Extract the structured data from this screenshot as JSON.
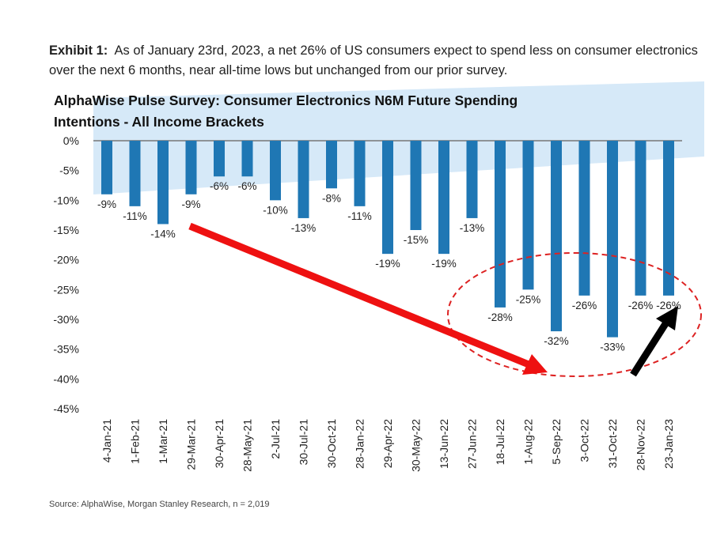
{
  "exhibit": {
    "label": "Exhibit 1:",
    "text": "As of January 23rd, 2023, a net 26% of US consumers expect to spend less on consumer electronics over the next 6 months, near all-time lows but unchanged from our prior survey."
  },
  "source": "Source: AlphaWise, Morgan Stanley Research, n = 2,019",
  "colors": {
    "bar": "#1f77b4",
    "band": "#d6e9f8",
    "arrow_red": "#ee1111",
    "arrow_black": "#000000",
    "ellipse": "#dd2222"
  },
  "chart_data": {
    "type": "bar",
    "title_lines": [
      "AlphaWise Pulse Survey: Consumer Electronics N6M Future Spending",
      "Intentions - All Income Brackets"
    ],
    "categories": [
      "4-Jan-21",
      "1-Feb-21",
      "1-Mar-21",
      "29-Mar-21",
      "30-Apr-21",
      "28-May-21",
      "2-Jul-21",
      "30-Jul-21",
      "30-Oct-21",
      "28-Jan-22",
      "29-Apr-22",
      "30-May-22",
      "13-Jun-22",
      "27-Jun-22",
      "18-Jul-22",
      "1-Aug-22",
      "5-Sep-22",
      "3-Oct-22",
      "31-Oct-22",
      "28-Nov-22",
      "23-Jan-23"
    ],
    "values": [
      -9,
      -11,
      -14,
      -9,
      -6,
      -6,
      -10,
      -13,
      -8,
      -11,
      -19,
      -15,
      -19,
      -13,
      -28,
      -25,
      -32,
      -26,
      -33,
      -26,
      -26
    ],
    "data_labels": [
      "-9%",
      "-11%",
      "-14%",
      "-9%",
      "-6%",
      "-6%",
      "-10%",
      "-13%",
      "-8%",
      "-11%",
      "-19%",
      "-15%",
      "-19%",
      "-13%",
      "-28%",
      "-25%",
      "-32%",
      "-26%",
      "-33%",
      "-26%",
      "-26%"
    ],
    "yticks": [
      0,
      -5,
      -10,
      -15,
      -20,
      -25,
      -30,
      -35,
      -40,
      -45
    ],
    "ytick_labels": [
      "0%",
      "-5%",
      "-10%",
      "-15%",
      "-20%",
      "-25%",
      "-30%",
      "-35%",
      "-40%",
      "-45%"
    ],
    "ylim": [
      -45,
      0
    ],
    "xlabel": "",
    "ylabel": "",
    "grid": false,
    "annotations": [
      "red downward trend arrow",
      "dashed red ellipse around Jul-22 to Jan-23",
      "black upward arrow at latest bar"
    ]
  }
}
